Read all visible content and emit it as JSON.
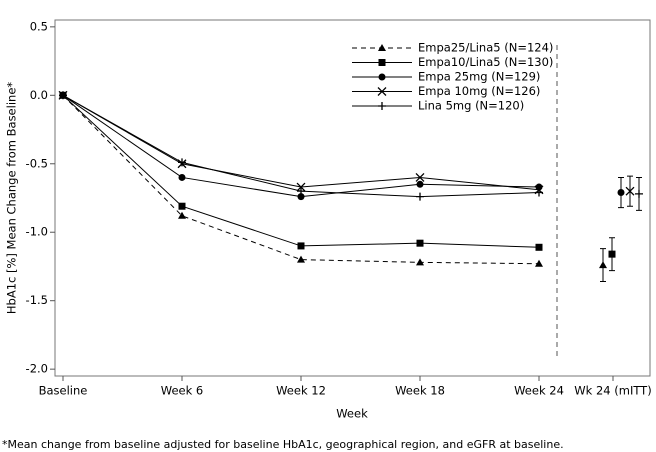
{
  "chart_data": {
    "type": "line",
    "xlabel": "Week",
    "ylabel": "HbA1c [%] Mean Change from Baseline*",
    "footnote": "*Mean change from baseline adjusted for baseline HbA1c, geographical region, and eGFR at baseline.",
    "categories": [
      "Baseline",
      "Week 6",
      "Week 12",
      "Week 18",
      "Week 24",
      "Wk 24 (mITT)"
    ],
    "ylim": [
      -2.05,
      0.55
    ],
    "yticks": [
      0.5,
      {
        "value": 0,
        "label": "0.0"
      },
      -0.5,
      {
        "value": -1,
        "label": "-1.0"
      },
      -1.5,
      {
        "value": -2,
        "label": "-2.0"
      }
    ],
    "legend": "upper right",
    "series": [
      {
        "name": "Empa25/Lina5 (N=124)",
        "color": "#000000",
        "marker": "triangle",
        "dashed": true,
        "values": [
          0,
          -0.88,
          -1.2,
          -1.22,
          -1.23,
          -1.24
        ],
        "errors": [
          null,
          null,
          null,
          null,
          null,
          0.12
        ]
      },
      {
        "name": "Empa10/Lina5 (N=130)",
        "color": "#000000",
        "marker": "square",
        "dashed": false,
        "values": [
          0,
          -0.81,
          -1.1,
          -1.08,
          -1.11,
          -1.16
        ],
        "errors": [
          null,
          null,
          null,
          null,
          null,
          0.12
        ]
      },
      {
        "name": "Empa 25mg (N=129)",
        "color": "#000000",
        "marker": "circle",
        "dashed": false,
        "values": [
          0,
          -0.6,
          -0.74,
          -0.65,
          -0.67,
          -0.71
        ],
        "errors": [
          null,
          null,
          null,
          null,
          null,
          0.11
        ]
      },
      {
        "name": "Empa 10mg (N=126)",
        "color": "#000000",
        "marker": "x",
        "dashed": false,
        "values": [
          0,
          -0.5,
          -0.67,
          -0.6,
          -0.69,
          -0.7
        ],
        "errors": [
          null,
          null,
          null,
          null,
          null,
          0.11
        ]
      },
      {
        "name": "Lina 5mg (N=120)",
        "color": "#000000",
        "marker": "plus",
        "dashed": false,
        "values": [
          0,
          -0.49,
          -0.7,
          -0.74,
          -0.71,
          -0.72
        ],
        "errors": [
          null,
          null,
          null,
          null,
          null,
          0.12
        ]
      }
    ]
  }
}
